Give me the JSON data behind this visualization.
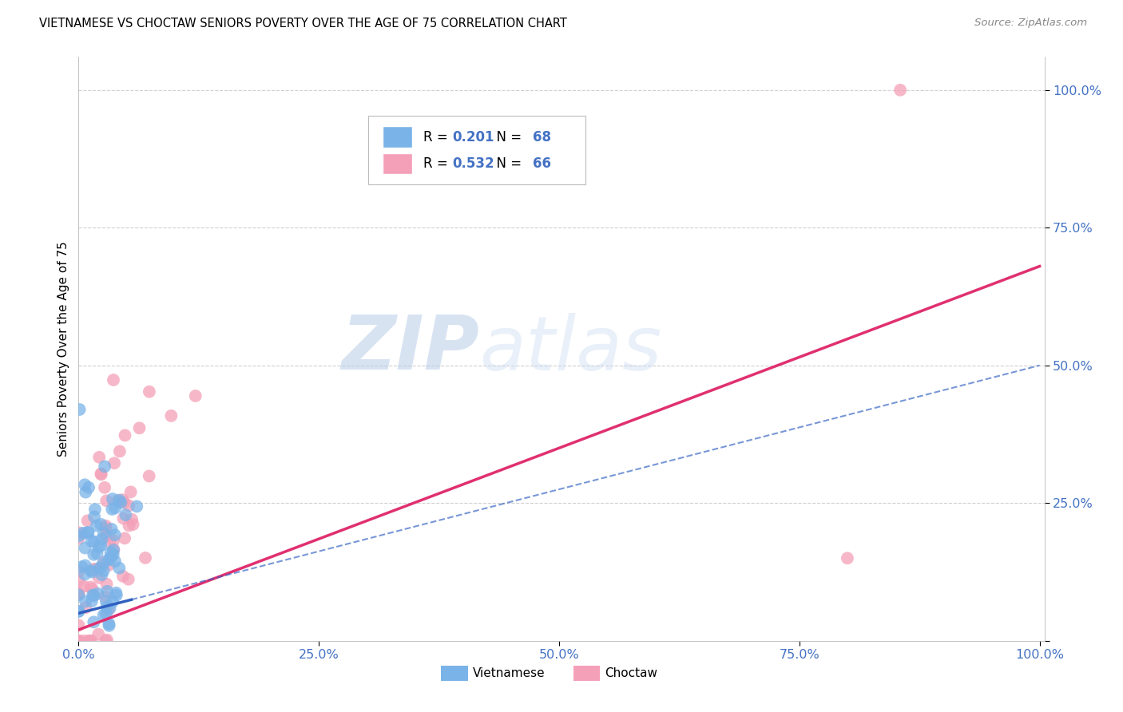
{
  "title": "VIETNAMESE VS CHOCTAW SENIORS POVERTY OVER THE AGE OF 75 CORRELATION CHART",
  "source": "Source: ZipAtlas.com",
  "ylabel": "Seniors Poverty Over the Age of 75",
  "watermark": "ZIPatlas",
  "background_color": "#ffffff",
  "grid_color": "#d0d0d0",
  "blue_dot": "#7ab3e8",
  "pink_dot": "#f4a0b8",
  "blue_line": "#3060c0",
  "pink_line": "#e03070",
  "blue_text": "#4472c4",
  "R_viet": 0.201,
  "N_viet": 68,
  "R_choc": 0.532,
  "N_choc": 66
}
